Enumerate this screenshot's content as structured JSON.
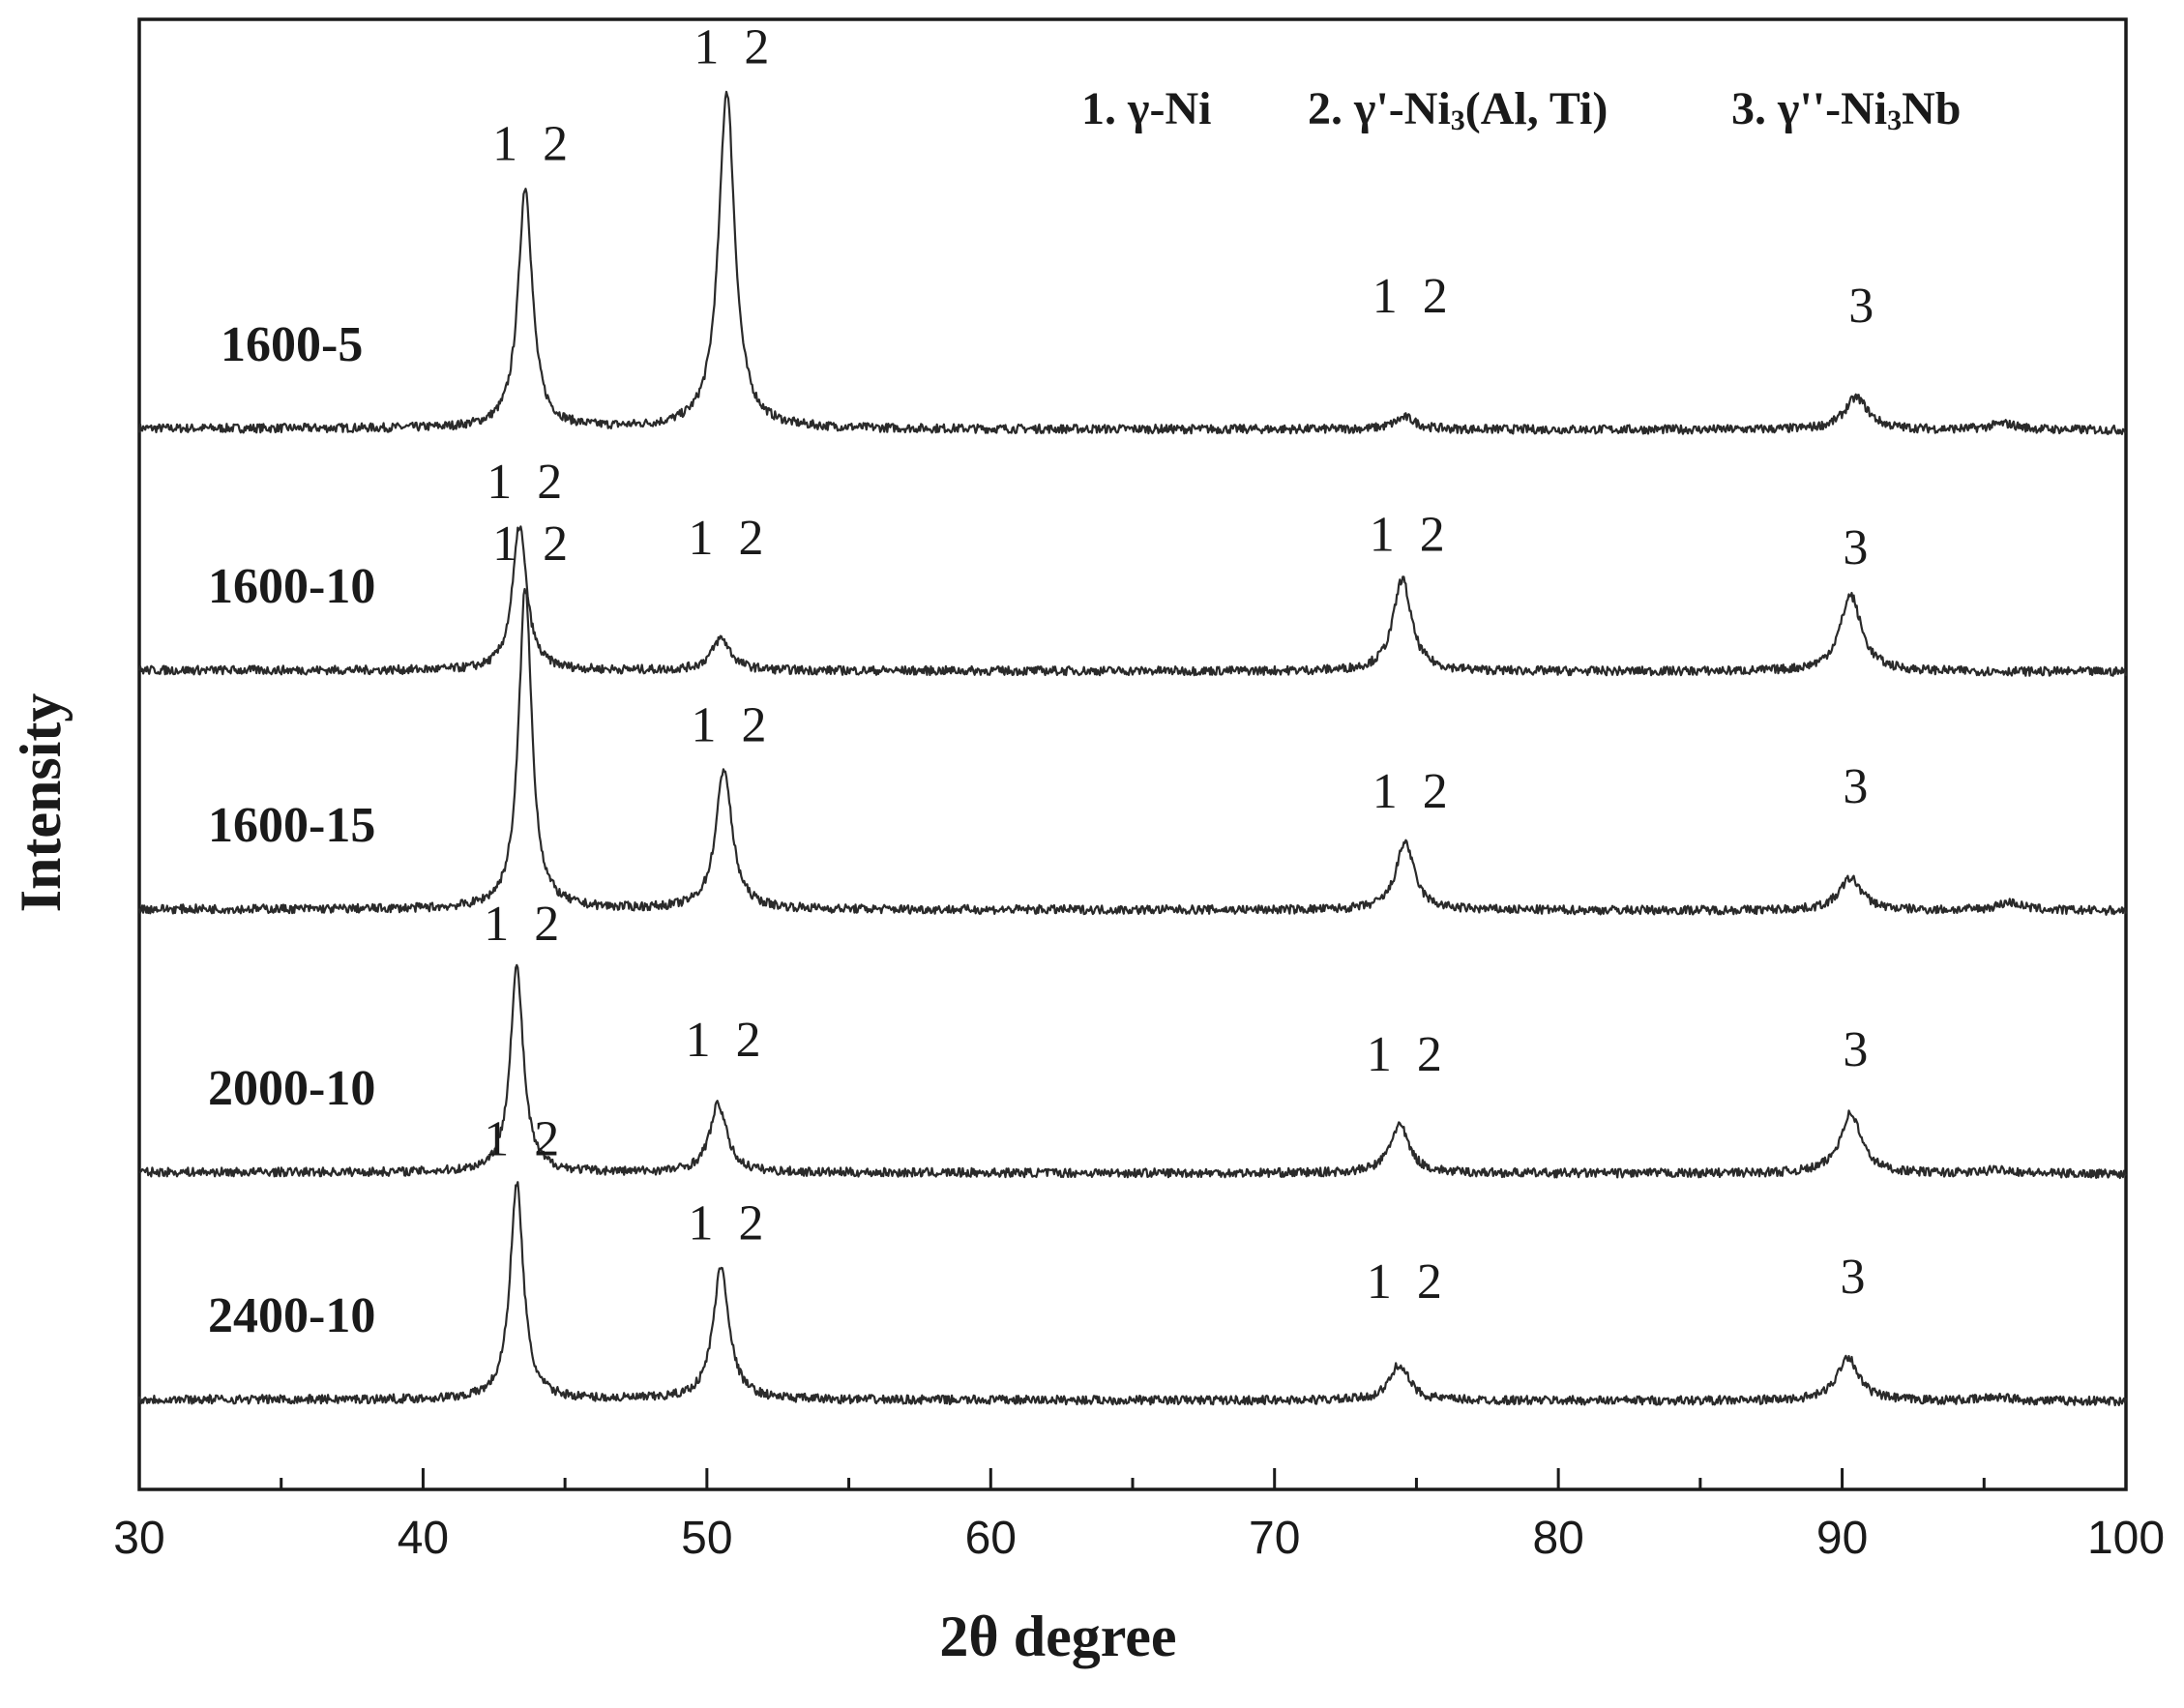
{
  "chart_data": {
    "type": "line",
    "title": "",
    "xlabel": "2θ degree",
    "ylabel": "Intensity",
    "xlim": [
      30,
      100
    ],
    "x_ticks": [
      30,
      40,
      50,
      60,
      70,
      80,
      90,
      100
    ],
    "x_minor_step": 5,
    "y_ticks_shown": false,
    "grid": false,
    "legend": [
      {
        "number": "1.",
        "phase": "γ-Ni"
      },
      {
        "number": "2.",
        "phase": "γ'-Ni",
        "sub": "3",
        "suffix": "(Al, Ti)"
      },
      {
        "number": "3.",
        "phase": "γ''-Ni",
        "sub": "3",
        "suffix": "Nb"
      }
    ],
    "legend_position": "top-right",
    "series": [
      {
        "name": "1600-5",
        "peaks": [
          {
            "x": 43.6,
            "height": 0.6,
            "width": 0.3,
            "label": "1  2"
          },
          {
            "x": 50.7,
            "height": 0.84,
            "width": 0.34,
            "label": "1  2"
          },
          {
            "x": 74.6,
            "height": 0.03,
            "width": 0.45,
            "label": "1  2"
          },
          {
            "x": 90.5,
            "height": 0.08,
            "width": 0.5,
            "label": "3"
          },
          {
            "x": 95.7,
            "height": 0.015,
            "width": 0.6,
            "label": ""
          }
        ]
      },
      {
        "name": "1600-10",
        "peaks": [
          {
            "x": 43.4,
            "height": 0.36,
            "width": 0.3,
            "label": "1  2"
          },
          {
            "x": 50.5,
            "height": 0.08,
            "width": 0.4,
            "label": "1  2"
          },
          {
            "x": 74.5,
            "height": 0.23,
            "width": 0.38,
            "label": "1  2"
          },
          {
            "x": 90.3,
            "height": 0.19,
            "width": 0.45,
            "label": "3"
          }
        ]
      },
      {
        "name": "1600-15",
        "peaks": [
          {
            "x": 43.6,
            "height": 0.8,
            "width": 0.28,
            "label": "1  2"
          },
          {
            "x": 50.6,
            "height": 0.35,
            "width": 0.34,
            "label": "1  2"
          },
          {
            "x": 74.6,
            "height": 0.17,
            "width": 0.38,
            "label": "1  2"
          },
          {
            "x": 90.3,
            "height": 0.08,
            "width": 0.48,
            "label": "3"
          },
          {
            "x": 95.9,
            "height": 0.02,
            "width": 0.55,
            "label": ""
          }
        ]
      },
      {
        "name": "2000-10",
        "peaks": [
          {
            "x": 43.3,
            "height": 0.51,
            "width": 0.28,
            "label": "1  2"
          },
          {
            "x": 50.4,
            "height": 0.17,
            "width": 0.36,
            "label": "1  2"
          },
          {
            "x": 74.4,
            "height": 0.12,
            "width": 0.4,
            "label": "1  2"
          },
          {
            "x": 90.3,
            "height": 0.15,
            "width": 0.45,
            "label": "3"
          },
          {
            "x": 95.6,
            "height": 0.01,
            "width": 0.55,
            "label": ""
          }
        ]
      },
      {
        "name": "2400-10",
        "peaks": [
          {
            "x": 43.3,
            "height": 0.54,
            "width": 0.28,
            "label": "1  2"
          },
          {
            "x": 50.5,
            "height": 0.33,
            "width": 0.34,
            "label": "1  2"
          },
          {
            "x": 74.4,
            "height": 0.09,
            "width": 0.4,
            "label": "1  2"
          },
          {
            "x": 90.2,
            "height": 0.11,
            "width": 0.45,
            "label": "3"
          },
          {
            "x": 95.5,
            "height": 0.01,
            "width": 0.55,
            "label": ""
          }
        ]
      }
    ]
  }
}
